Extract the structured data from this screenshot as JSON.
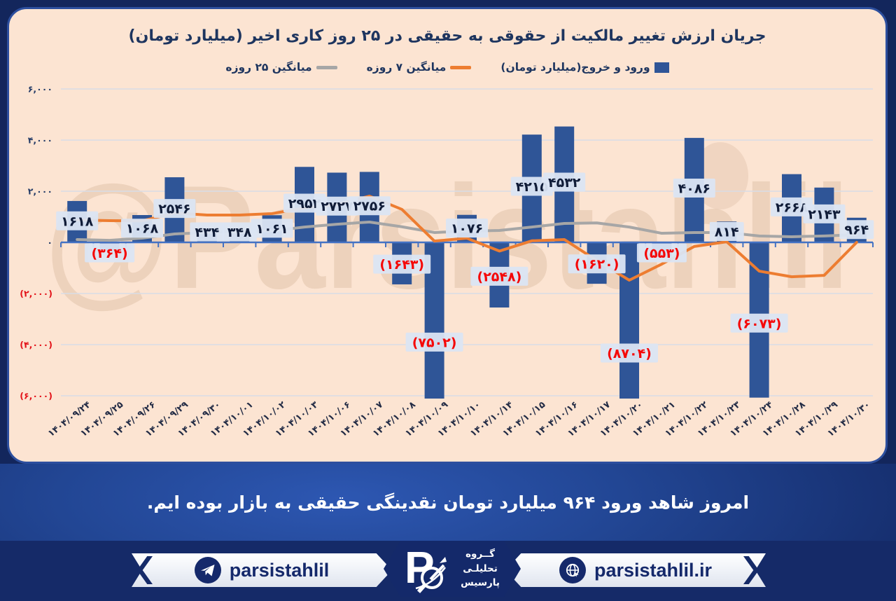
{
  "chart_data": {
    "type": "bar",
    "title": "جریان ارزش تغییر مالکیت از حقوقی به حقیقی در ۲۵ روز کاری اخیر (میلیارد تومان)",
    "legend": [
      {
        "name": "ورود و خروج(میلیارد تومان)",
        "type": "bar",
        "color": "#2f5597"
      },
      {
        "name": "میانگین ۷ روزه",
        "type": "line",
        "color": "#ed7d31"
      },
      {
        "name": "میانگین ۲۵ روزه",
        "type": "line",
        "color": "#a6a6a6"
      }
    ],
    "categories": [
      "۱۴۰۴/۰۹/۲۴",
      "۱۴۰۴/۰۹/۲۵",
      "۱۴۰۴/۰۹/۲۶",
      "۱۴۰۴/۰۹/۲۹",
      "۱۴۰۴/۰۹/۳۰",
      "۱۴۰۴/۱۰/۰۱",
      "۱۴۰۴/۱۰/۰۲",
      "۱۴۰۴/۱۰/۰۳",
      "۱۴۰۴/۱۰/۰۶",
      "۱۴۰۴/۱۰/۰۷",
      "۱۴۰۴/۱۰/۰۸",
      "۱۴۰۴/۱۰/۰۹",
      "۱۴۰۴/۱۰/۱۰",
      "۱۴۰۴/۱۰/۱۴",
      "۱۴۰۴/۱۰/۱۵",
      "۱۴۰۴/۱۰/۱۶",
      "۱۴۰۴/۱۰/۱۷",
      "۱۴۰۴/۱۰/۲۰",
      "۱۴۰۴/۱۰/۲۱",
      "۱۴۰۴/۱۰/۲۲",
      "۱۴۰۴/۱۰/۲۳",
      "۱۴۰۴/۱۰/۲۴",
      "۱۴۰۴/۱۰/۲۸",
      "۱۴۰۴/۱۰/۲۹",
      "۱۴۰۴/۱۰/۳۰"
    ],
    "series": [
      {
        "name": "ورود و خروج(میلیارد تومان)",
        "type": "bar",
        "values": [
          1618,
          -364,
          1068,
          2546,
          434,
          348,
          1061,
          2952,
          2727,
          2756,
          -1643,
          -7502,
          1076,
          -2548,
          4215,
          4532,
          -1620,
          -8704,
          -553,
          4086,
          814,
          -6073,
          2668,
          2143,
          964
        ],
        "labels": [
          "۱۶۱۸",
          "(۳۶۴)",
          "۱۰۶۸",
          "۲۵۴۶",
          "۴۳۴",
          "۳۴۸",
          "۱۰۶۱",
          "۲۹۵۲",
          "۲۷۲۷",
          "۲۷۵۶",
          "(۱۶۴۳)",
          "(۷۵۰۲)",
          "۱۰۷۶",
          "(۲۵۴۸)",
          "۴۲۱۵",
          "۴۵۳۲",
          "(۱۶۲۰)",
          "(۸۷۰۴)",
          "(۵۵۳)",
          "۴۰۸۶",
          "۸۱۴",
          "(۶۰۷۳)",
          "۲۶۶۸",
          "۲۱۴۳",
          "۹۶۴"
        ]
      },
      {
        "name": "میانگین ۷ روزه",
        "type": "line",
        "values": [
          875,
          850,
          840,
          1150,
          1070,
          1070,
          1125,
          1345,
          1480,
          1810,
          1290,
          50,
          160,
          -340,
          60,
          110,
          -710,
          -1480,
          -850,
          -160,
          25,
          -1125,
          -1345,
          -1290,
          0
        ]
      },
      {
        "name": "میانگین ۲۵ روزه",
        "type": "line",
        "values": [
          110,
          80,
          165,
          330,
          385,
          440,
          450,
          600,
          710,
          795,
          610,
          385,
          440,
          465,
          600,
          740,
          760,
          600,
          355,
          385,
          385,
          250,
          220,
          250,
          300
        ]
      }
    ],
    "yticks": [
      {
        "value": 6000,
        "label": "۶,۰۰۰"
      },
      {
        "value": 4000,
        "label": "۴,۰۰۰"
      },
      {
        "value": 2000,
        "label": "۲,۰۰۰"
      },
      {
        "value": 0,
        "label": "۰"
      },
      {
        "value": -2000,
        "label": "(۲,۰۰۰)"
      },
      {
        "value": -4000,
        "label": "(۴,۰۰۰)"
      },
      {
        "value": -6000,
        "label": "(۶,۰۰۰)"
      }
    ],
    "ylim": [
      -6150,
      6350
    ],
    "grid": true,
    "legend_position": "top",
    "colors": {
      "bar": "#2f5597",
      "avg7": "#ed7d31",
      "avg25": "#a6a6a6",
      "axis": "#4472c4",
      "grid": "#d8dce6",
      "label_box": "#dbe5f3",
      "label_text": "#101c38",
      "label_negative": "#f50808",
      "ytick_positive": "#233a66",
      "ytick_negative": "#e31219",
      "date_text": "#222b45",
      "card_bg": "#fce4d2",
      "watermark": "#8a5a2e"
    }
  },
  "watermark": "@Parsistahlil",
  "message": "امروز شاهد ورود ۹۶۴ میلیارد تومان نقدینگی حقیقی به بازار بوده ایم.",
  "footer": {
    "telegram_handle": "parsistahlil",
    "website": "parsistahlil.ir",
    "logo_lines": [
      "گــروه",
      "تحلیلـی",
      "پارسیس"
    ]
  }
}
